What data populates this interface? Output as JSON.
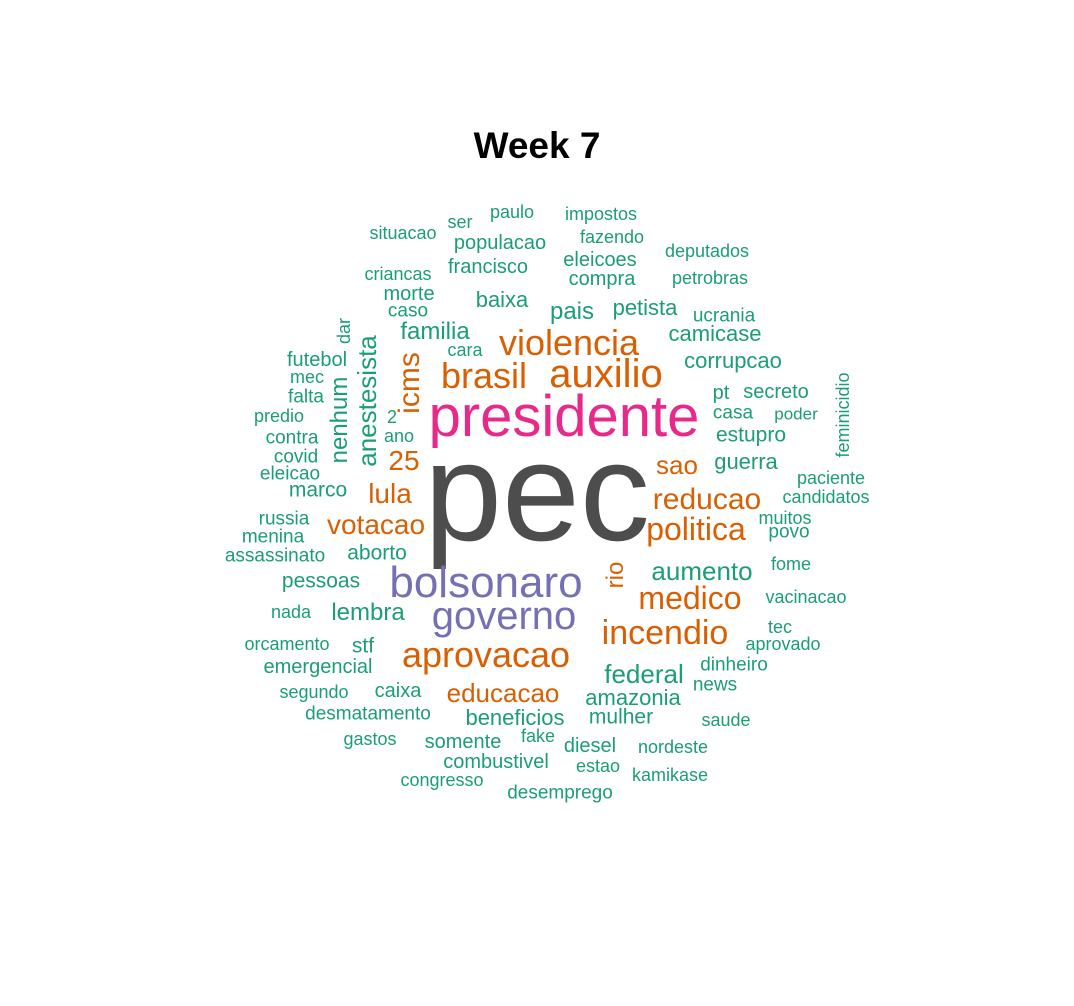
{
  "title": "Week 7",
  "colors": {
    "c1": "#1b9e77",
    "c2": "#d95f02",
    "c3": "#7570b3",
    "c4": "#e7298a",
    "c5": "#4d4d4d"
  },
  "words": [
    {
      "text": "pec",
      "color": "c5"
    },
    {
      "text": "presidente",
      "color": "c4"
    },
    {
      "text": "bolsonaro",
      "color": "c3"
    },
    {
      "text": "governo",
      "color": "c3"
    },
    {
      "text": "aprovacao",
      "color": "c2"
    },
    {
      "text": "auxilio",
      "color": "c2"
    },
    {
      "text": "violencia",
      "color": "c2"
    },
    {
      "text": "brasil",
      "color": "c2"
    },
    {
      "text": "incendio",
      "color": "c2"
    },
    {
      "text": "medico",
      "color": "c2"
    },
    {
      "text": "politica",
      "color": "c2"
    },
    {
      "text": "reducao",
      "color": "c2"
    },
    {
      "text": "votacao",
      "color": "c2"
    },
    {
      "text": "lula",
      "color": "c2"
    },
    {
      "text": "educacao",
      "color": "c2"
    },
    {
      "text": "sao",
      "color": "c2"
    },
    {
      "text": "25",
      "color": "c2"
    },
    {
      "text": "icms",
      "color": "c2"
    },
    {
      "text": "rio",
      "color": "c2"
    },
    {
      "text": "aumento",
      "color": "c1"
    },
    {
      "text": "federal",
      "color": "c1"
    },
    {
      "text": "anestesista",
      "color": "c1"
    },
    {
      "text": "nenhum",
      "color": "c1"
    },
    {
      "text": "amazonia",
      "color": "c1"
    },
    {
      "text": "lembra",
      "color": "c1"
    },
    {
      "text": "pais",
      "color": "c1"
    },
    {
      "text": "familia",
      "color": "c1"
    },
    {
      "text": "baixa",
      "color": "c1"
    },
    {
      "text": "corrupcao",
      "color": "c1"
    },
    {
      "text": "camicase",
      "color": "c1"
    },
    {
      "text": "petista",
      "color": "c1"
    },
    {
      "text": "guerra",
      "color": "c1"
    },
    {
      "text": "estupro",
      "color": "c1"
    },
    {
      "text": "marco",
      "color": "c1"
    },
    {
      "text": "aborto",
      "color": "c1"
    },
    {
      "text": "pessoas",
      "color": "c1"
    },
    {
      "text": "beneficios",
      "color": "c1"
    },
    {
      "text": "mulher",
      "color": "c1"
    },
    {
      "text": "stf",
      "color": "c1"
    },
    {
      "text": "caixa",
      "color": "c1"
    },
    {
      "text": "emergencial",
      "color": "c1"
    },
    {
      "text": "somente",
      "color": "c1"
    },
    {
      "text": "combustivel",
      "color": "c1"
    },
    {
      "text": "diesel",
      "color": "c1"
    },
    {
      "text": "francisco",
      "color": "c1"
    },
    {
      "text": "morte",
      "color": "c1"
    },
    {
      "text": "compra",
      "color": "c1"
    },
    {
      "text": "eleicoes",
      "color": "c1"
    },
    {
      "text": "populacao",
      "color": "c1"
    },
    {
      "text": "futebol",
      "color": "c1"
    },
    {
      "text": "pt",
      "color": "c1"
    },
    {
      "text": "secreto",
      "color": "c1"
    },
    {
      "text": "casa",
      "color": "c1"
    },
    {
      "text": "dinheiro",
      "color": "c1"
    },
    {
      "text": "news",
      "color": "c1"
    },
    {
      "text": "desmatamento",
      "color": "c1"
    },
    {
      "text": "assassinato",
      "color": "c1"
    },
    {
      "text": "contra",
      "color": "c1"
    },
    {
      "text": "falta",
      "color": "c1"
    },
    {
      "text": "covid",
      "color": "c1"
    },
    {
      "text": "eleicao",
      "color": "c1"
    },
    {
      "text": "russia",
      "color": "c1"
    },
    {
      "text": "menina",
      "color": "c1"
    },
    {
      "text": "povo",
      "color": "c1"
    },
    {
      "text": "muitos",
      "color": "c1"
    },
    {
      "text": "caso",
      "color": "c1"
    },
    {
      "text": "cara",
      "color": "c1"
    },
    {
      "text": "ano",
      "color": "c1"
    },
    {
      "text": "2",
      "color": "c1"
    },
    {
      "text": "mec",
      "color": "c1"
    },
    {
      "text": "predio",
      "color": "c1"
    },
    {
      "text": "dar",
      "color": "c1"
    },
    {
      "text": "ucrania",
      "color": "c1"
    },
    {
      "text": "feminicidio",
      "color": "c1"
    },
    {
      "text": "poder",
      "color": "c1"
    },
    {
      "text": "paciente",
      "color": "c1"
    },
    {
      "text": "candidatos",
      "color": "c1"
    },
    {
      "text": "fome",
      "color": "c1"
    },
    {
      "text": "vacinacao",
      "color": "c1"
    },
    {
      "text": "tec",
      "color": "c1"
    },
    {
      "text": "aprovado",
      "color": "c1"
    },
    {
      "text": "saude",
      "color": "c1"
    },
    {
      "text": "nordeste",
      "color": "c1"
    },
    {
      "text": "kamikase",
      "color": "c1"
    },
    {
      "text": "estao",
      "color": "c1"
    },
    {
      "text": "fake",
      "color": "c1"
    },
    {
      "text": "desemprego",
      "color": "c1"
    },
    {
      "text": "congresso",
      "color": "c1"
    },
    {
      "text": "gastos",
      "color": "c1"
    },
    {
      "text": "segundo",
      "color": "c1"
    },
    {
      "text": "orcamento",
      "color": "c1"
    },
    {
      "text": "nada",
      "color": "c1"
    },
    {
      "text": "situacao",
      "color": "c1"
    },
    {
      "text": "ser",
      "color": "c1"
    },
    {
      "text": "paulo",
      "color": "c1"
    },
    {
      "text": "impostos",
      "color": "c1"
    },
    {
      "text": "fazendo",
      "color": "c1"
    },
    {
      "text": "deputados",
      "color": "c1"
    },
    {
      "text": "petrobras",
      "color": "c1"
    },
    {
      "text": "criancas",
      "color": "c1"
    }
  ]
}
